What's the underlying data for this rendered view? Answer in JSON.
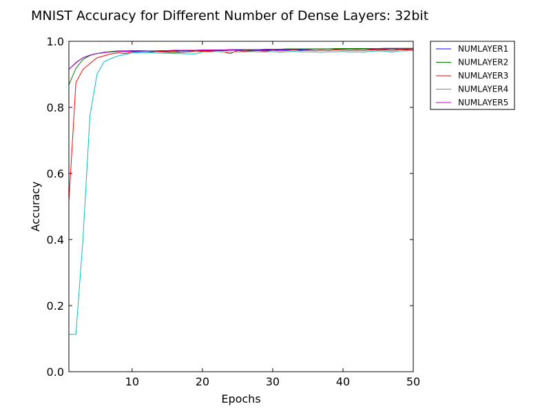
{
  "chart_data": {
    "type": "line",
    "title": "MNIST Accuracy for Different Number of Dense Layers: 32bit",
    "xlabel": "Epochs",
    "ylabel": "Accuracy",
    "xlim": [
      1,
      50
    ],
    "ylim": [
      0.0,
      1.0
    ],
    "xticks": [
      10,
      20,
      30,
      40,
      50
    ],
    "xtick_labels": [
      "10",
      "20",
      "30",
      "40",
      "50"
    ],
    "yticks": [
      0.0,
      0.2,
      0.4,
      0.6,
      0.8,
      1.0
    ],
    "ytick_labels": [
      "0.0",
      "0.2",
      "0.4",
      "0.6",
      "0.8",
      "1.0"
    ],
    "grid": false,
    "legend_position": "outside-top-right",
    "x": [
      1,
      2,
      3,
      4,
      5,
      6,
      7,
      8,
      9,
      10,
      11,
      12,
      13,
      14,
      15,
      16,
      17,
      18,
      19,
      20,
      21,
      22,
      23,
      24,
      25,
      26,
      27,
      28,
      29,
      30,
      31,
      32,
      33,
      34,
      35,
      36,
      37,
      38,
      39,
      40,
      41,
      42,
      43,
      44,
      45,
      46,
      47,
      48,
      49,
      50
    ],
    "series": [
      {
        "name": "NUMLAYER1",
        "color": "#0000ff",
        "values": [
          0.915,
          0.935,
          0.95,
          0.958,
          0.963,
          0.966,
          0.968,
          0.969,
          0.969,
          0.97,
          0.97,
          0.97,
          0.97,
          0.97,
          0.971,
          0.971,
          0.971,
          0.971,
          0.972,
          0.972,
          0.972,
          0.972,
          0.972,
          0.973,
          0.973,
          0.973,
          0.973,
          0.973,
          0.973,
          0.973,
          0.974,
          0.974,
          0.974,
          0.974,
          0.975,
          0.976,
          0.976,
          0.976,
          0.976,
          0.976,
          0.976,
          0.976,
          0.976,
          0.976,
          0.976,
          0.976,
          0.976,
          0.976,
          0.976,
          0.975
        ]
      },
      {
        "name": "NUMLAYER2",
        "color": "#008000",
        "values": [
          0.868,
          0.918,
          0.945,
          0.957,
          0.963,
          0.967,
          0.969,
          0.971,
          0.971,
          0.972,
          0.972,
          0.971,
          0.97,
          0.968,
          0.967,
          0.966,
          0.967,
          0.968,
          0.97,
          0.971,
          0.972,
          0.973,
          0.974,
          0.975,
          0.975,
          0.974,
          0.974,
          0.975,
          0.976,
          0.976,
          0.976,
          0.977,
          0.977,
          0.977,
          0.977,
          0.977,
          0.977,
          0.977,
          0.978,
          0.978,
          0.978,
          0.978,
          0.978,
          0.978,
          0.978,
          0.979,
          0.979,
          0.979,
          0.979,
          0.979
        ]
      },
      {
        "name": "NUMLAYER3",
        "color": "#ff0000",
        "values": [
          0.515,
          0.875,
          0.915,
          0.933,
          0.95,
          0.956,
          0.962,
          0.965,
          0.963,
          0.968,
          0.967,
          0.966,
          0.968,
          0.97,
          0.969,
          0.97,
          0.967,
          0.968,
          0.971,
          0.969,
          0.97,
          0.969,
          0.968,
          0.963,
          0.972,
          0.97,
          0.971,
          0.972,
          0.97,
          0.973,
          0.971,
          0.972,
          0.974,
          0.972,
          0.973,
          0.972,
          0.973,
          0.972,
          0.974,
          0.973,
          0.972,
          0.973,
          0.972,
          0.974,
          0.973,
          0.974,
          0.971,
          0.975,
          0.974,
          0.975
        ]
      },
      {
        "name": "NUMLAYER4",
        "color": "#00bfbf",
        "values": [
          0.113,
          0.113,
          0.4,
          0.775,
          0.9,
          0.938,
          0.948,
          0.956,
          0.96,
          0.965,
          0.966,
          0.966,
          0.965,
          0.964,
          0.964,
          0.963,
          0.963,
          0.962,
          0.962,
          0.968,
          0.968,
          0.969,
          0.968,
          0.967,
          0.968,
          0.968,
          0.969,
          0.968,
          0.968,
          0.969,
          0.967,
          0.968,
          0.97,
          0.968,
          0.968,
          0.968,
          0.967,
          0.968,
          0.968,
          0.969,
          0.967,
          0.968,
          0.967,
          0.97,
          0.971,
          0.97,
          0.967,
          0.971,
          0.971,
          0.972
        ]
      },
      {
        "name": "NUMLAYER5",
        "color": "#bf00bf",
        "values": [
          0.915,
          0.936,
          0.95,
          0.958,
          0.963,
          0.966,
          0.968,
          0.969,
          0.97,
          0.97,
          0.971,
          0.971,
          0.971,
          0.972,
          0.972,
          0.973,
          0.973,
          0.973,
          0.973,
          0.974,
          0.974,
          0.974,
          0.974,
          0.974,
          0.975,
          0.975,
          0.975,
          0.975,
          0.975,
          0.975,
          0.975,
          0.975,
          0.976,
          0.976,
          0.976,
          0.976,
          0.976,
          0.976,
          0.976,
          0.976,
          0.976,
          0.976,
          0.976,
          0.977,
          0.977,
          0.977,
          0.977,
          0.977,
          0.977,
          0.977
        ]
      }
    ]
  }
}
